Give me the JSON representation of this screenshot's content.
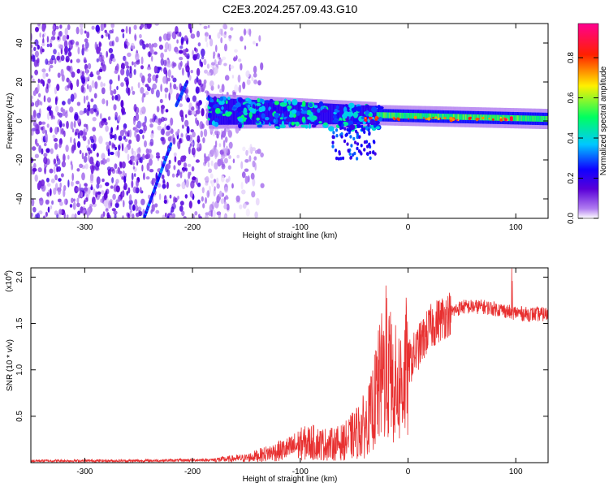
{
  "title": "C2E3.2024.257.09.43.G10",
  "chart_data": [
    {
      "type": "heatmap",
      "xlabel": "Height of straight line (km)",
      "ylabel": "Frequency (Hz)",
      "xlim": [
        -350,
        130
      ],
      "ylim": [
        -50,
        50
      ],
      "xticks": [
        -300,
        -200,
        -100,
        0,
        100
      ],
      "yticks": [
        -40,
        -20,
        0,
        20,
        40
      ],
      "colorbar": {
        "label": "Normalized spectral amplitude",
        "range": [
          0,
          0.97
        ],
        "ticks": [
          0.0,
          0.2,
          0.4,
          0.6,
          0.8
        ],
        "colormap": [
          "#ffffff",
          "#b07cf0",
          "#5a00d8",
          "#1000ff",
          "#00c8ff",
          "#00ff60",
          "#fff000",
          "#ff2000",
          "#ff0090"
        ]
      },
      "features": [
        {
          "description_value": "noise",
          "x_range": [
            -350,
            -165
          ],
          "freq_range": [
            -50,
            50
          ],
          "amplitude": 0.15
        },
        {
          "description_value": "line",
          "x": [
            -245,
            -220
          ],
          "freq": [
            -50,
            -12
          ],
          "amplitude": 0.3
        },
        {
          "description_value": "line",
          "x": [
            -215,
            -205
          ],
          "freq": [
            8,
            20
          ],
          "amplitude": 0.3
        },
        {
          "description_value": "band",
          "x_range": [
            -185,
            130
          ],
          "freq_center": [
            5,
            1
          ],
          "amplitude_max": 0.95
        }
      ]
    },
    {
      "type": "line",
      "xlabel": "Height of straight line (km)",
      "ylabel": "SNR (10 * v/v)",
      "scale_note": "(x10",
      "scale_exp": "4",
      "xlim": [
        -350,
        130
      ],
      "ylim": [
        0,
        2.1
      ],
      "xticks": [
        -300,
        -200,
        -100,
        0,
        100
      ],
      "yticks": [
        0.5,
        1.0,
        1.5,
        2.0
      ],
      "line_color": "#e83030",
      "series": [
        {
          "x": [
            -350,
            -250,
            -180,
            -150,
            -130,
            -110,
            -100,
            -90,
            -80,
            -70,
            -60,
            -50,
            -40,
            -35,
            -30,
            -25,
            -20,
            -15,
            -10,
            -5,
            0,
            5,
            10,
            15,
            20,
            30,
            40,
            50,
            60,
            70,
            80,
            90,
            95,
            100,
            110,
            120,
            130
          ],
          "values": [
            0.02,
            0.02,
            0.03,
            0.05,
            0.1,
            0.15,
            0.2,
            0.22,
            0.2,
            0.2,
            0.22,
            0.3,
            0.4,
            0.5,
            0.7,
            0.9,
            1.0,
            0.9,
            0.8,
            0.9,
            1.05,
            1.15,
            1.25,
            1.35,
            1.45,
            1.55,
            1.62,
            1.68,
            1.68,
            1.68,
            1.66,
            1.64,
            1.62,
            1.62,
            1.6,
            1.6,
            1.6
          ]
        }
      ]
    }
  ]
}
